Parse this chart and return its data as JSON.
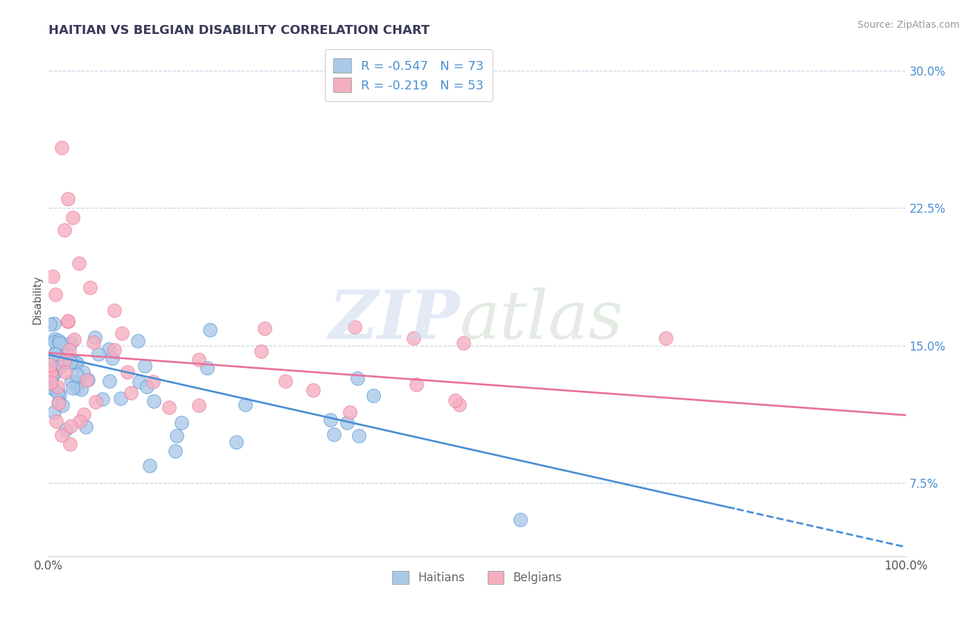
{
  "title": "HAITIAN VS BELGIAN DISABILITY CORRELATION CHART",
  "source": "Source: ZipAtlas.com",
  "ylabel": "Disability",
  "xlim": [
    0,
    1.0
  ],
  "ylim": [
    0.035,
    0.315
  ],
  "yticks": [
    0.075,
    0.15,
    0.225,
    0.3
  ],
  "ytick_labels": [
    "7.5%",
    "15.0%",
    "22.5%",
    "30.0%"
  ],
  "xticks": [
    0.0,
    1.0
  ],
  "xtick_labels": [
    "0.0%",
    "100.0%"
  ],
  "haitian_R": -0.547,
  "haitian_N": 73,
  "belgian_R": -0.219,
  "belgian_N": 53,
  "haitian_color": "#aac9e8",
  "belgian_color": "#f5aec0",
  "haitian_line_color": "#4a8fd4",
  "belgian_line_color": "#e8729a",
  "legend_label_haitian": "Haitians",
  "legend_label_belgian": "Belgians",
  "background_color": "#ffffff",
  "grid_color": "#c8d4e8",
  "title_color": "#3a3a5a",
  "source_color": "#999999",
  "tick_color": "#4a8fd4",
  "haitian_seed": 42,
  "belgian_seed": 7
}
